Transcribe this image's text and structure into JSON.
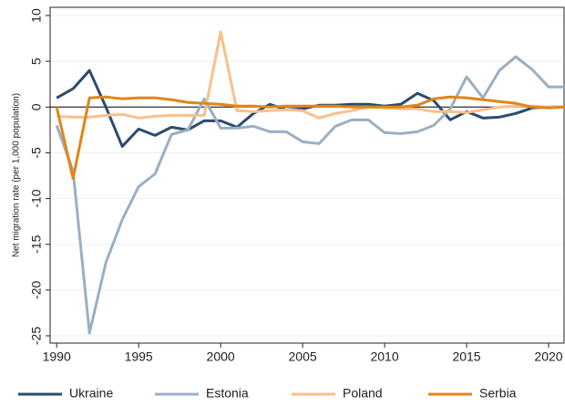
{
  "chart_data": {
    "type": "line",
    "y_label": "Net migration rate (per 1,000 population)",
    "x": [
      1990,
      1991,
      1992,
      1993,
      1994,
      1995,
      1996,
      1997,
      1998,
      1999,
      2000,
      2001,
      2002,
      2003,
      2004,
      2005,
      2006,
      2007,
      2008,
      2009,
      2010,
      2011,
      2012,
      2013,
      2014,
      2015,
      2016,
      2017,
      2018,
      2019,
      2020,
      2021
    ],
    "series": [
      {
        "name": "Ukraine",
        "color": "#2d4b6e",
        "values": [
          1.0,
          2.0,
          4.0,
          0,
          -4.3,
          -2.4,
          -3.1,
          -2.2,
          -2.5,
          -1.5,
          -1.5,
          -2.2,
          -0.7,
          0.3,
          -0.3,
          -0.2,
          0.2,
          0.2,
          0.3,
          0.3,
          0.1,
          0.3,
          1.5,
          0.7,
          -1.4,
          -0.5,
          -1.2,
          -1.1,
          -0.7,
          -0.1,
          0,
          0
        ]
      },
      {
        "name": "Estonia",
        "color": "#9aafc4",
        "values": [
          -2,
          -7,
          -24.7,
          -17,
          -12.3,
          -8.7,
          -7.3,
          -3,
          -2.5,
          0.9,
          -2.3,
          -2.3,
          -2.1,
          -2.7,
          -2.7,
          -3.8,
          -4.0,
          -2.1,
          -1.4,
          -1.4,
          -2.8,
          -2.9,
          -2.7,
          -2.0,
          -0.2,
          3.3,
          1.0,
          4.0,
          5.5,
          4.1,
          2.2,
          2.2
        ]
      },
      {
        "name": "Poland",
        "color": "#f9c08a",
        "values": [
          -1,
          -1.1,
          -1.1,
          -0.9,
          -0.8,
          -1.2,
          -1.0,
          -0.9,
          -0.9,
          -0.9,
          8.2,
          -0.4,
          -0.5,
          -0.4,
          -0.3,
          -0.4,
          -1.2,
          -0.7,
          -0.4,
          0,
          -0.1,
          -0.2,
          -0.2,
          -0.5,
          -0.5,
          -0.6,
          -0.3,
          0,
          0.1,
          0.1,
          0,
          0
        ]
      },
      {
        "name": "Serbia",
        "color": "#e0861a",
        "values": [
          0,
          -7.8,
          1.0,
          1.1,
          0.9,
          1.0,
          1.0,
          0.8,
          0.5,
          0.4,
          0.3,
          0.1,
          0.1,
          0,
          0.1,
          0.1,
          0.1,
          0.1,
          0,
          0,
          0,
          0,
          0.2,
          0.9,
          1.1,
          1.0,
          0.8,
          0.6,
          0.4,
          0,
          -0.1,
          0
        ]
      }
    ],
    "xlim": [
      1989.6,
      2021
    ],
    "ylim": [
      -25.8,
      10.9
    ],
    "xticks": [
      1990,
      1995,
      2000,
      2005,
      2010,
      2015,
      2020
    ],
    "yticks": [
      -25,
      -20,
      -15,
      -10,
      -5,
      0,
      5,
      10
    ],
    "grid": true,
    "legend": "bottom"
  }
}
